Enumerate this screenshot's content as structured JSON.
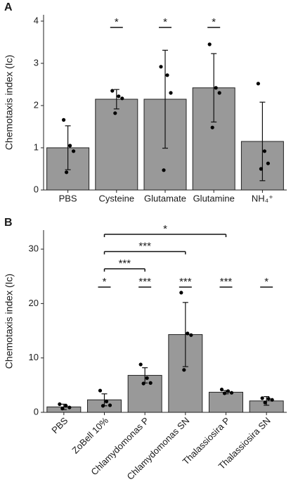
{
  "chart_data": [
    {
      "type": "bar",
      "panel_label": "A",
      "y_label": "Chemotaxis index (Ic)",
      "categories": [
        "PBS",
        "Cysteine",
        "Glutamate",
        "Glutamine",
        "NH₄⁺"
      ],
      "values": [
        1.0,
        2.15,
        2.15,
        2.42,
        1.15
      ],
      "errors": [
        0.52,
        0.23,
        1.16,
        0.81,
        0.93
      ],
      "points": [
        [
          1.66,
          1.05,
          0.92,
          0.42
        ],
        [
          2.35,
          2.22,
          2.17,
          1.82
        ],
        [
          2.92,
          2.72,
          2.3,
          0.47
        ],
        [
          3.45,
          2.42,
          2.3,
          1.48
        ],
        [
          2.52,
          0.92,
          0.63,
          0.5
        ]
      ],
      "color": "#999999",
      "ylim": [
        0,
        4.15
      ],
      "yticks": [
        0,
        1,
        2,
        3,
        4
      ],
      "significance": [
        {
          "label": "*",
          "category": "Cysteine"
        },
        {
          "label": "*",
          "category": "Glutamate"
        },
        {
          "label": "*",
          "category": "Glutamine"
        }
      ],
      "comparisons": []
    },
    {
      "type": "bar",
      "panel_label": "B",
      "y_label": "Chemotaxis index (Ic)",
      "categories": [
        "PBS",
        "ZoBell 10%",
        "Chlamydomonas P",
        "Chlamydomonas SN",
        "Thalassiosira P",
        "Thalassiosira SN"
      ],
      "values": [
        1.0,
        2.3,
        6.8,
        14.3,
        3.7,
        2.1
      ],
      "errors": [
        0.5,
        1.1,
        1.4,
        5.9,
        0.3,
        0.8
      ],
      "points": [
        [
          1.5,
          1.2,
          0.9,
          0.7
        ],
        [
          4.0,
          2.0,
          1.3,
          1.2
        ],
        [
          8.8,
          6.3,
          5.4,
          5.3
        ],
        [
          22.0,
          14.5,
          14.2,
          7.8
        ],
        [
          4.2,
          3.9,
          3.6,
          3.5
        ],
        [
          2.6,
          2.5,
          2.3,
          1.8
        ]
      ],
      "color": "#999999",
      "ylim": [
        0,
        33.5
      ],
      "yticks": [
        0,
        10,
        20,
        30
      ],
      "significance": [
        {
          "label": "*",
          "category": "ZoBell 10%"
        },
        {
          "label": "***",
          "category": "Chlamydomonas P"
        },
        {
          "label": "***",
          "category": "Chlamydomonas SN"
        },
        {
          "label": "***",
          "category": "Thalassiosira P"
        },
        {
          "label": "*",
          "category": "Thalassiosira SN"
        }
      ],
      "comparisons": [
        {
          "label": "***",
          "from": "ZoBell 10%",
          "to": "Chlamydomonas P"
        },
        {
          "label": "***",
          "from": "ZoBell 10%",
          "to": "Chlamydomonas SN"
        },
        {
          "label": "*",
          "from": "ZoBell 10%",
          "to": "Thalassiosira P"
        }
      ]
    }
  ]
}
